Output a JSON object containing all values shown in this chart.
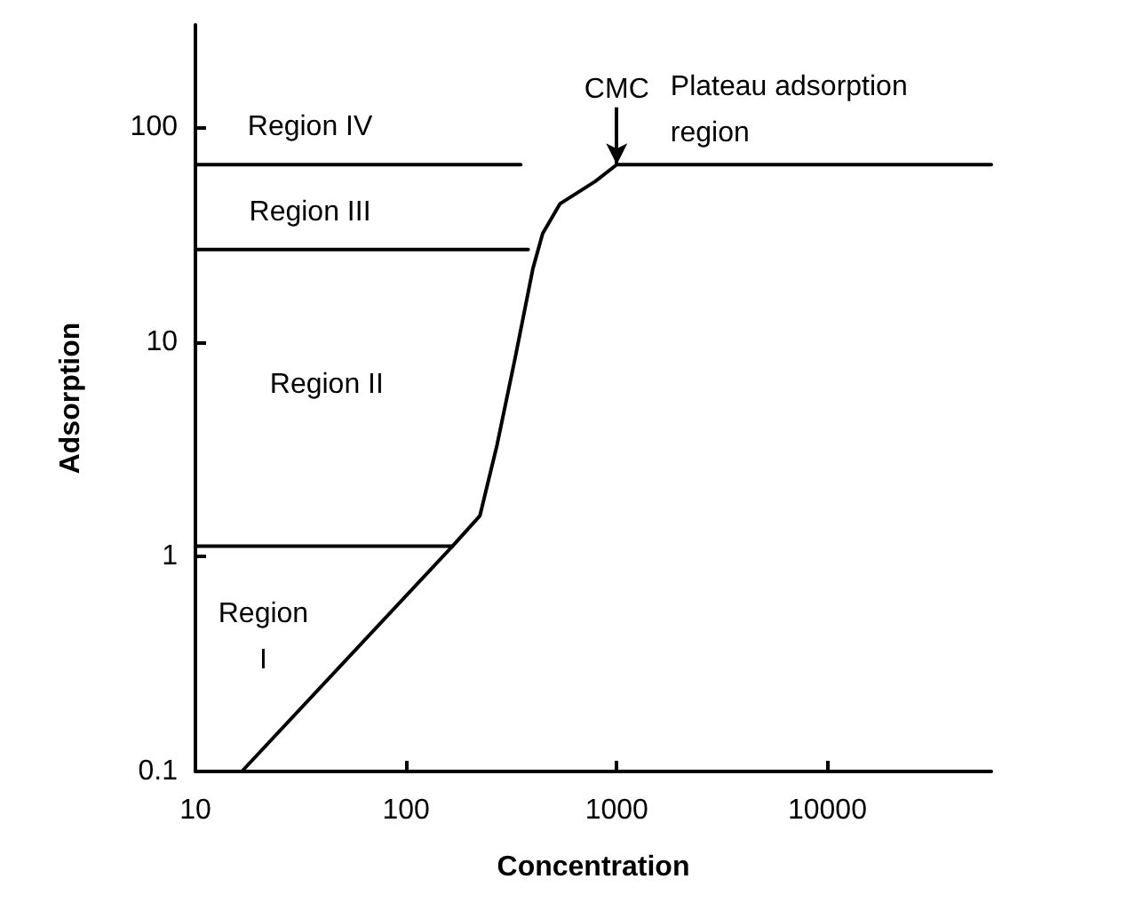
{
  "chart_data": {
    "type": "line",
    "xlabel": "Concentration",
    "ylabel": "Adsorption",
    "log": "xy",
    "grid": false,
    "marker": "none",
    "line_style": "solid",
    "xlim": [
      10,
      60000
    ],
    "xticks": [
      10,
      100,
      1000,
      10000
    ],
    "ylim": [
      0.1,
      300
    ],
    "yticks": [
      0.1,
      1,
      10,
      100
    ],
    "series": [
      {
        "color": "#000000",
        "x": [
          16.6,
          166,
          224,
          270,
          330,
          400,
          445,
          537,
          790,
          1000,
          60000
        ],
        "values": [
          0.1,
          1.12,
          1.55,
          3.3,
          8.5,
          22,
          32,
          44,
          56,
          67,
          67
        ]
      },
      {
        "color": "#000000",
        "x": [
          10,
          166
        ],
        "values": [
          1.12,
          1.12
        ]
      },
      {
        "color": "#000000",
        "x": [
          10,
          380
        ],
        "values": [
          27,
          27
        ]
      },
      {
        "color": "#000000",
        "x": [
          10,
          350
        ],
        "values": [
          67,
          67
        ]
      }
    ],
    "annotations": [
      "Region IV",
      "Region III",
      "Region II",
      "Region I",
      {
        "text": "CMC",
        "x": 1000,
        "y": 67
      },
      "Plateau adsorption region"
    ]
  }
}
